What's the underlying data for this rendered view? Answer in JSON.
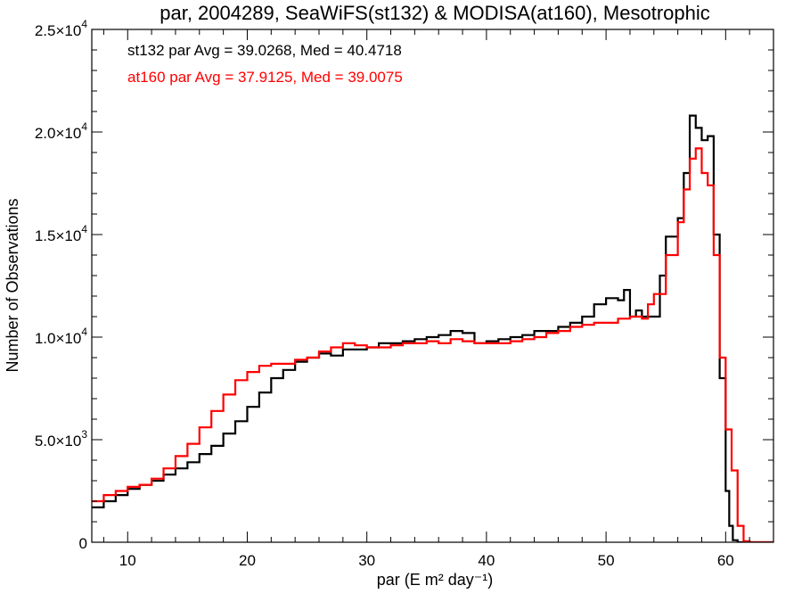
{
  "chart_data": {
    "type": "line",
    "title": "par, 2004289, SeaWiFS(st132) & MODISA(at160), Mesotrophic",
    "xlabel": "par (E m² day⁻¹)",
    "ylabel": "Number of Observations",
    "xlim": [
      7,
      64
    ],
    "ylim": [
      0,
      25000
    ],
    "xticks": [
      {
        "value": 10,
        "label": "10"
      },
      {
        "value": 20,
        "label": "20"
      },
      {
        "value": 30,
        "label": "30"
      },
      {
        "value": 40,
        "label": "40"
      },
      {
        "value": 50,
        "label": "50"
      },
      {
        "value": 60,
        "label": "60"
      }
    ],
    "yticks": [
      {
        "value": 0,
        "mant": "0",
        "exp": ""
      },
      {
        "value": 5000,
        "mant": "5.0×10",
        "exp": "3"
      },
      {
        "value": 10000,
        "mant": "1.0×10",
        "exp": "4"
      },
      {
        "value": 15000,
        "mant": "1.5×10",
        "exp": "4"
      },
      {
        "value": 20000,
        "mant": "2.0×10",
        "exp": "4"
      },
      {
        "value": 25000,
        "mant": "2.5×10",
        "exp": "4"
      }
    ],
    "grid": false,
    "annotations": [
      {
        "text": "st132 par Avg = 39.0268, Med = 40.4718",
        "color": "#000000"
      },
      {
        "text": "at160 par Avg = 37.9125, Med = 39.0075",
        "color": "#ff0000"
      }
    ],
    "series": [
      {
        "color": "#000000",
        "x": [
          7,
          8,
          9,
          10,
          11,
          12,
          13,
          14,
          15,
          16,
          17,
          18,
          19,
          20,
          21,
          22,
          23,
          24,
          25,
          26,
          27,
          28,
          29,
          30,
          31,
          32,
          33,
          34,
          35,
          36,
          37,
          38,
          39,
          40,
          41,
          42,
          43,
          44,
          45,
          46,
          47,
          48,
          49,
          50,
          51,
          51.5,
          52,
          52.5,
          53,
          54,
          54.5,
          55,
          56,
          56.5,
          57,
          57.5,
          58,
          58.5,
          59,
          59.5,
          60,
          60.3,
          60.6,
          61,
          62,
          63,
          64
        ],
        "y": [
          1700,
          2000,
          2300,
          2600,
          2800,
          3000,
          3300,
          3600,
          3900,
          4300,
          4700,
          5300,
          5900,
          6600,
          7300,
          8000,
          8400,
          8800,
          9000,
          9200,
          9100,
          9400,
          9400,
          9500,
          9700,
          9700,
          9800,
          9900,
          10000,
          10100,
          10300,
          10200,
          9700,
          9800,
          9900,
          10000,
          10100,
          10300,
          10300,
          10500,
          10700,
          11000,
          11600,
          11900,
          11800,
          12300,
          11000,
          11300,
          11000,
          11000,
          13000,
          14900,
          15800,
          18000,
          20800,
          20200,
          19600,
          19800,
          15000,
          8000,
          2500,
          800,
          100,
          0,
          0,
          0,
          0
        ]
      },
      {
        "color": "#ff0000",
        "x": [
          7,
          8,
          9,
          10,
          11,
          12,
          13,
          14,
          15,
          16,
          17,
          18,
          19,
          20,
          21,
          22,
          23,
          24,
          25,
          26,
          27,
          28,
          29,
          30,
          31,
          32,
          33,
          34,
          35,
          36,
          37,
          38,
          39,
          40,
          41,
          42,
          43,
          44,
          45,
          46,
          47,
          48,
          49,
          50,
          51,
          52,
          53,
          53.5,
          54,
          55,
          56,
          56.5,
          57,
          57.5,
          58,
          58.5,
          59,
          59.5,
          60,
          60.5,
          61,
          61.5,
          62,
          63,
          64
        ],
        "y": [
          2000,
          2300,
          2500,
          2700,
          2800,
          3100,
          3600,
          4200,
          4800,
          5600,
          6400,
          7200,
          7900,
          8300,
          8600,
          8700,
          8700,
          8900,
          9000,
          9300,
          9500,
          9700,
          9600,
          9500,
          9500,
          9600,
          9700,
          9700,
          9800,
          9700,
          9900,
          9800,
          9700,
          9700,
          9700,
          9800,
          9900,
          10000,
          10200,
          10300,
          10500,
          10600,
          10700,
          10700,
          10900,
          11000,
          10900,
          11600,
          12100,
          14000,
          15600,
          17200,
          18700,
          19200,
          18000,
          17400,
          14000,
          9000,
          5500,
          3500,
          800,
          50,
          0,
          0,
          0
        ]
      }
    ]
  }
}
